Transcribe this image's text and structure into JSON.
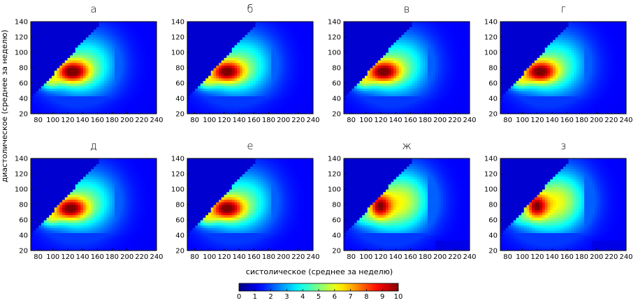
{
  "figure": {
    "xlabel": "систолическое (среднее за неделю)",
    "ylabel": "диастолическое (среднее за неделю)"
  },
  "colorbar": {
    "colormap": "jet",
    "min": 0,
    "max": 10,
    "ticks": [
      0,
      1,
      2,
      3,
      4,
      5,
      6,
      7,
      8,
      9,
      10
    ]
  },
  "chart_data": [
    {
      "type": "heatmap",
      "panel": 0,
      "title": "а",
      "xlim": [
        70,
        240
      ],
      "ylim": [
        20,
        140
      ],
      "xticks": [
        80,
        100,
        120,
        140,
        160,
        180,
        200,
        220,
        240
      ],
      "yticks": [
        20,
        40,
        60,
        80,
        100,
        120,
        140
      ],
      "zlim": [
        0,
        10
      ],
      "peak": {
        "x": 125,
        "y": 75,
        "value": 10
      }
    },
    {
      "type": "heatmap",
      "panel": 1,
      "title": "б",
      "xlim": [
        70,
        240
      ],
      "ylim": [
        20,
        140
      ],
      "xticks": [
        80,
        100,
        120,
        140,
        160,
        180,
        200,
        220,
        240
      ],
      "yticks": [
        20,
        40,
        60,
        80,
        100,
        120,
        140
      ],
      "zlim": [
        0,
        10
      ],
      "peak": {
        "x": 122,
        "y": 75,
        "value": 10
      }
    },
    {
      "type": "heatmap",
      "panel": 2,
      "title": "в",
      "xlim": [
        70,
        240
      ],
      "ylim": [
        20,
        140
      ],
      "xticks": [
        80,
        100,
        120,
        140,
        160,
        180,
        200,
        220,
        240
      ],
      "yticks": [
        20,
        40,
        60,
        80,
        100,
        120,
        140
      ],
      "zlim": [
        0,
        10
      ],
      "peak": {
        "x": 122,
        "y": 75,
        "value": 10
      }
    },
    {
      "type": "heatmap",
      "panel": 3,
      "title": "г",
      "xlim": [
        70,
        240
      ],
      "ylim": [
        20,
        140
      ],
      "xticks": [
        80,
        100,
        120,
        140,
        160,
        180,
        200,
        220,
        240
      ],
      "yticks": [
        20,
        40,
        60,
        80,
        100,
        120,
        140
      ],
      "zlim": [
        0,
        10
      ],
      "peak": {
        "x": 122,
        "y": 75,
        "value": 10
      }
    },
    {
      "type": "heatmap",
      "panel": 4,
      "title": "д",
      "xlim": [
        70,
        240
      ],
      "ylim": [
        20,
        140
      ],
      "xticks": [
        80,
        100,
        120,
        140,
        160,
        180,
        200,
        220,
        240
      ],
      "yticks": [
        20,
        40,
        60,
        80,
        100,
        120,
        140
      ],
      "zlim": [
        0,
        10
      ],
      "peak": {
        "x": 122,
        "y": 75,
        "value": 10
      }
    },
    {
      "type": "heatmap",
      "panel": 5,
      "title": "е",
      "xlim": [
        70,
        240
      ],
      "ylim": [
        20,
        140
      ],
      "xticks": [
        80,
        100,
        120,
        140,
        160,
        180,
        200,
        220,
        240
      ],
      "yticks": [
        20,
        40,
        60,
        80,
        100,
        120,
        140
      ],
      "zlim": [
        0,
        10
      ],
      "peak": {
        "x": 122,
        "y": 75,
        "value": 10
      }
    },
    {
      "type": "heatmap",
      "panel": 6,
      "title": "ж",
      "xlim": [
        70,
        240
      ],
      "ylim": [
        20,
        140
      ],
      "xticks": [
        80,
        100,
        120,
        140,
        160,
        180,
        200,
        220,
        240
      ],
      "yticks": [
        20,
        40,
        60,
        80,
        100,
        120,
        140
      ],
      "zlim": [
        0,
        10
      ],
      "peak": {
        "x": 118,
        "y": 78,
        "value": 10
      }
    },
    {
      "type": "heatmap",
      "panel": 7,
      "title": "з",
      "xlim": [
        70,
        240
      ],
      "ylim": [
        20,
        140
      ],
      "xticks": [
        80,
        100,
        120,
        140,
        160,
        180,
        200,
        220,
        240
      ],
      "yticks": [
        20,
        40,
        60,
        80,
        100,
        120,
        140
      ],
      "zlim": [
        0,
        10
      ],
      "peak": {
        "x": 118,
        "y": 78,
        "value": 10
      }
    }
  ]
}
